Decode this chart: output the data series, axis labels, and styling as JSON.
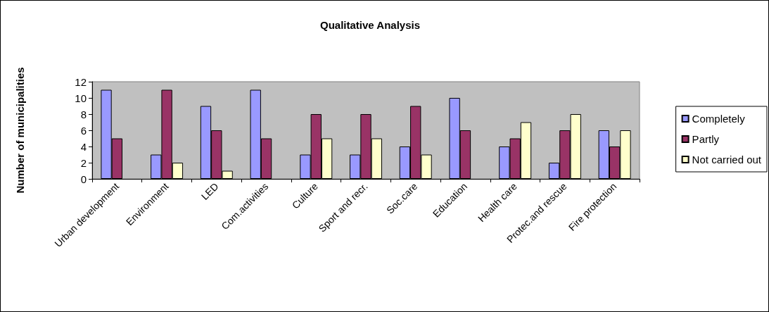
{
  "chart_data": {
    "type": "bar",
    "title": "Qualitative Analysis",
    "ylabel": "Number of municipalities",
    "categories": [
      "Urban development",
      "Environment",
      "LED",
      "Com.activities",
      "Culture",
      "Sport and recr.",
      "Soc.care",
      "Education",
      "Health care",
      "Protec.and rescue",
      "Fire protection"
    ],
    "series": [
      {
        "name": "Completely",
        "color": "#9999ff",
        "values": [
          11,
          3,
          9,
          11,
          3,
          3,
          4,
          10,
          4,
          2,
          6
        ]
      },
      {
        "name": "Partly",
        "color": "#993366",
        "values": [
          5,
          11,
          6,
          5,
          8,
          8,
          9,
          6,
          5,
          6,
          4
        ]
      },
      {
        "name": "Not carried out",
        "color": "#ffffcc",
        "values": [
          0,
          2,
          1,
          0,
          5,
          5,
          3,
          0,
          7,
          8,
          6
        ]
      }
    ],
    "ylim": [
      0,
      12
    ],
    "yticks": [
      0,
      2,
      4,
      6,
      8,
      10,
      12
    ],
    "grid": false,
    "legend": "right"
  }
}
